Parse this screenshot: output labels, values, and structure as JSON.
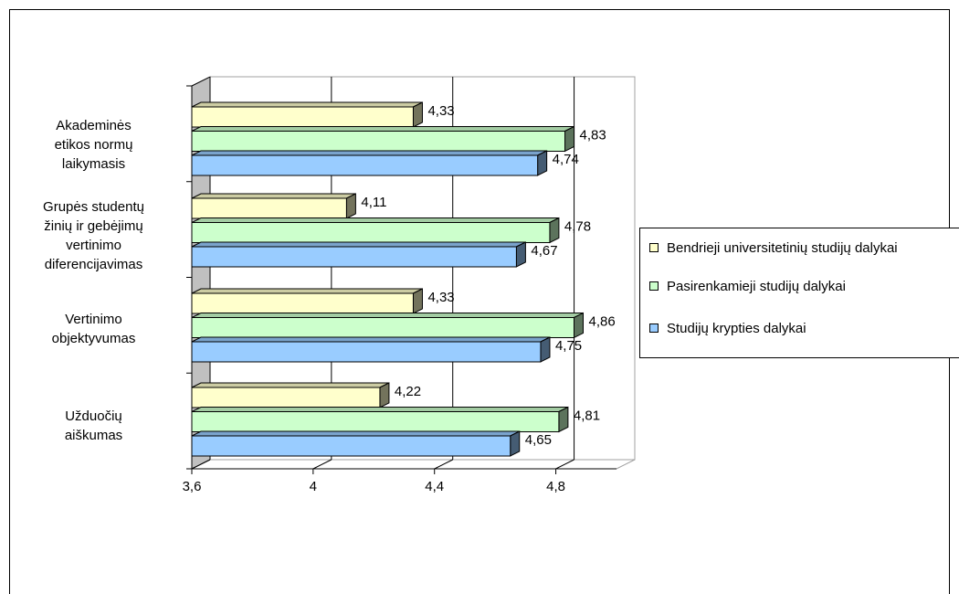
{
  "chart_data": {
    "type": "bar",
    "orientation": "horizontal",
    "categories": [
      [
        "Akademinės",
        "etikos normų",
        "laikymasis"
      ],
      [
        "Grupės studentų",
        "žinių ir gebėjimų",
        "vertinimo",
        "diferencijavimas"
      ],
      [
        "Vertinimo",
        "objektyvumas"
      ],
      [
        "Užduočių",
        "aiškumas"
      ]
    ],
    "series": [
      {
        "name": "Bendrieji universitetinių studijų dalykai",
        "color": "#ffffcc",
        "values": [
          4.33,
          4.11,
          4.33,
          4.22
        ],
        "labels": [
          "4,33",
          "4,11",
          "4,33",
          "4,22"
        ]
      },
      {
        "name": "Pasirenkamieji studijų dalykai",
        "color": "#ccffcc",
        "values": [
          4.83,
          4.78,
          4.86,
          4.81
        ],
        "labels": [
          "4,83",
          "4,78",
          "4,86",
          "4,81"
        ]
      },
      {
        "name": "Studijų krypties dalykai",
        "color": "#99ccff",
        "values": [
          4.74,
          4.67,
          4.75,
          4.65
        ],
        "labels": [
          "4,74",
          "4,67",
          "4,75",
          "4,65"
        ]
      }
    ],
    "xlim": [
      3.6,
      5.0
    ],
    "xticks": [
      3.6,
      4.0,
      4.4,
      4.8
    ],
    "xtick_labels": [
      "3,6",
      "4",
      "4,4",
      "4,8"
    ],
    "grid": "vertical",
    "legend": "right",
    "three_d": true,
    "title": "",
    "xlabel": "",
    "ylabel": ""
  }
}
